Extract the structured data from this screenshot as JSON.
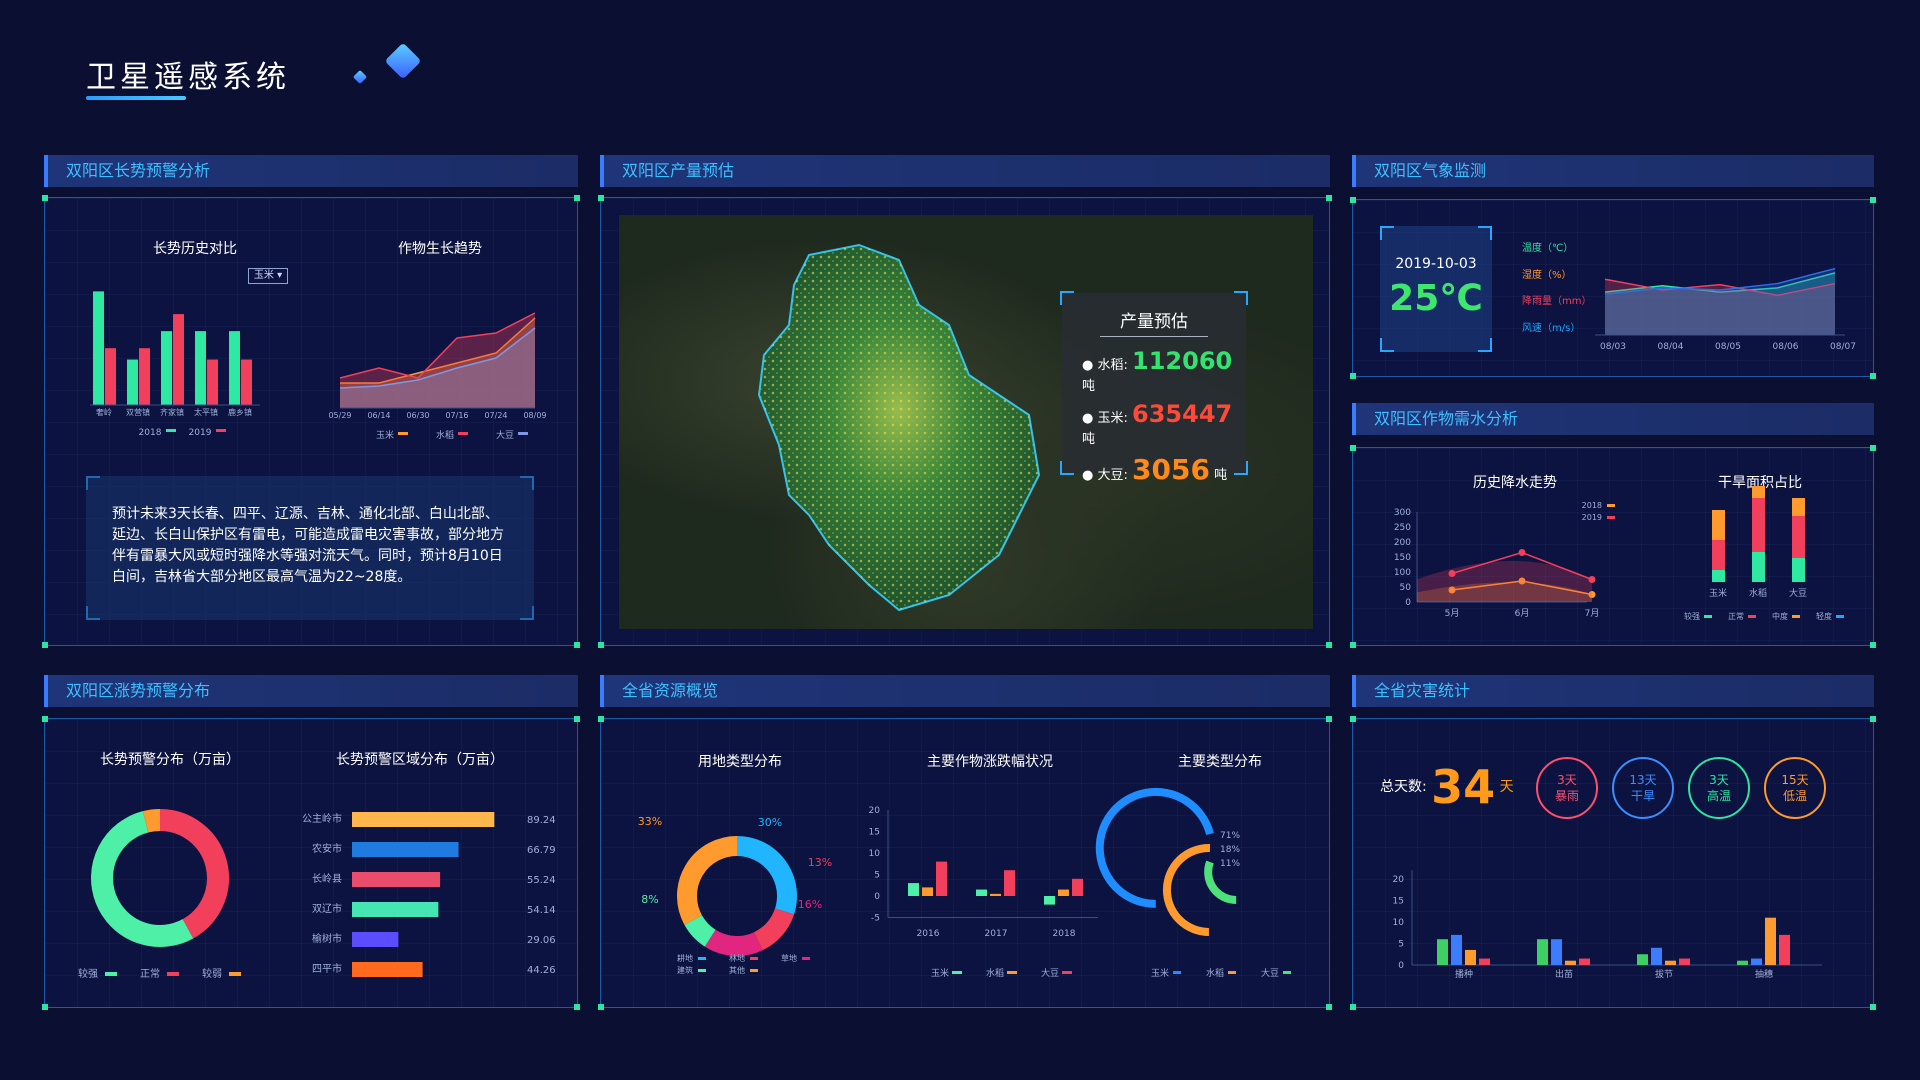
{
  "app": {
    "title": "卫星遥感系统"
  },
  "panels": {
    "growth_warning": {
      "header": "双阳区长势预警分析",
      "history_title": "长势历史对比",
      "trend_title": "作物生长趋势",
      "dropdown_value": "玉米",
      "forecast_text": "预计未来3天长春、四平、辽源、吉林、通化北部、白山北部、延边、长白山保护区有雷电，可能造成雷电灾害事故，部分地方伴有雷暴大风或短时强降水等强对流天气。同时，预计8月10日白间，吉林省大部分地区最高气温为22~28度。"
    },
    "yield": {
      "header": "双阳区产量预估",
      "box_title": "产量预估",
      "rice_label": "水稻:",
      "rice_value": "112060",
      "corn_label": "玉米:",
      "corn_value": "635447",
      "soy_label": "大豆:",
      "soy_value": "3056",
      "unit": "吨"
    },
    "weather": {
      "header": "双阳区气象监测",
      "date": "2019-10-03",
      "temperature": "25℃",
      "legend": [
        "温度（℃）",
        "湿度（%）",
        "降雨量（mm）",
        "风速（m/s）"
      ]
    },
    "water": {
      "header": "双阳区作物需水分析",
      "rain_title": "历史降水走势",
      "drought_title": "干旱面积占比"
    },
    "distribution": {
      "header": "双阳区涨势预警分布",
      "donut_title": "长势预警分布（万亩）",
      "bar_title": "长势预警区域分布（万亩）"
    },
    "resources": {
      "header": "全省资源概览",
      "land_title": "用地类型分布",
      "crop_title": "主要作物涨跌幅状况",
      "type_title": "主要类型分布"
    },
    "disaster": {
      "header": "全省灾害统计",
      "total_label": "总天数:",
      "total_value": "34",
      "total_unit": "天",
      "badges": [
        {
          "days": "3天",
          "name": "暴雨",
          "color": "#ff4f6d"
        },
        {
          "days": "13天",
          "name": "干旱",
          "color": "#3c8dff"
        },
        {
          "days": "3天",
          "name": "高温",
          "color": "#2fe3a0"
        },
        {
          "days": "15天",
          "name": "低温",
          "color": "#ff9a2e"
        }
      ]
    }
  },
  "colors": {
    "green": "#2fe8a2",
    "red": "#f23f5c",
    "orange": "#ff9a2e",
    "blue": "#1fa4ff",
    "yellow": "#ffd03a"
  },
  "chart_data": [
    {
      "id": "growth-history",
      "type": "bar",
      "categories": [
        "奢岭",
        "双营镇",
        "齐家镇",
        "太平镇",
        "鹿乡镇"
      ],
      "series": [
        {
          "name": "2018",
          "values": [
            100,
            40,
            65,
            65,
            65
          ]
        },
        {
          "name": "2019",
          "values": [
            50,
            50,
            80,
            40,
            40
          ]
        }
      ],
      "ylim": [
        0,
        110
      ]
    },
    {
      "id": "growth-trend",
      "type": "area",
      "categories": [
        "05/29",
        "06/14",
        "06/30",
        "07/16",
        "07/24",
        "08/09"
      ],
      "series": [
        {
          "name": "玉米",
          "values": [
            25,
            25,
            35,
            45,
            55,
            90
          ]
        },
        {
          "name": "水稻",
          "values": [
            30,
            40,
            30,
            70,
            75,
            95
          ]
        },
        {
          "name": "大豆",
          "values": [
            20,
            22,
            28,
            40,
            50,
            80
          ]
        }
      ],
      "ylim": [
        0,
        110
      ]
    },
    {
      "id": "weather",
      "type": "area",
      "categories": [
        "08/03",
        "08/04",
        "08/05",
        "08/06",
        "08/07"
      ],
      "series": [
        {
          "name": "温度（℃）",
          "values": [
            40,
            46,
            40,
            44,
            58
          ]
        },
        {
          "name": "降雨量（mm）",
          "values": [
            52,
            42,
            47,
            37,
            48
          ]
        },
        {
          "name": "风速（m/s）",
          "values": [
            38,
            44,
            42,
            48,
            62
          ]
        }
      ],
      "ylim": [
        0,
        70
      ]
    },
    {
      "id": "rain-trend",
      "type": "line",
      "categories": [
        "5月",
        "6月",
        "7月"
      ],
      "series": [
        {
          "name": "2018",
          "values": [
            40,
            70,
            25
          ]
        },
        {
          "name": "2019",
          "values": [
            95,
            165,
            75
          ]
        }
      ],
      "yticks": [
        0,
        50,
        100,
        150,
        200,
        250,
        300
      ],
      "ylim": [
        0,
        300
      ]
    },
    {
      "id": "drought",
      "type": "bar",
      "categories": [
        "玉米",
        "水稻",
        "大豆"
      ],
      "series": [
        {
          "name": "较强",
          "values": [
            10,
            25,
            20
          ]
        },
        {
          "name": "正常",
          "values": [
            25,
            45,
            35
          ]
        },
        {
          "name": "中度",
          "values": [
            25,
            10,
            15
          ]
        },
        {
          "name": "轻度",
          "values": [
            0,
            0,
            0
          ]
        }
      ]
    },
    {
      "id": "warning-donut",
      "type": "pie",
      "categories": [
        "较强",
        "正常",
        "较弱"
      ],
      "values": [
        42,
        54,
        4
      ]
    },
    {
      "id": "warning-region",
      "type": "bar",
      "categories": [
        "公主岭市",
        "农安市",
        "长岭县",
        "双辽市",
        "榆树市",
        "四平市"
      ],
      "values": [
        89.24,
        66.79,
        55.24,
        54.14,
        29.06,
        44.26
      ],
      "colors": [
        "#ffb74d",
        "#1f7be0",
        "#ea4d6c",
        "#46e6b4",
        "#5a4dff",
        "#ff6a1f"
      ]
    },
    {
      "id": "land-type",
      "type": "pie",
      "categories": [
        "耕地",
        "林地",
        "草地",
        "建筑",
        "其他"
      ],
      "values": [
        30,
        13,
        16,
        8,
        33
      ],
      "labels": [
        "30%",
        "13%",
        "16%",
        "8%",
        "33%"
      ]
    },
    {
      "id": "crop-change",
      "type": "bar",
      "categories": [
        "2016",
        "2017",
        "2018"
      ],
      "series": [
        {
          "name": "玉米",
          "values": [
            3,
            1.5,
            -2
          ]
        },
        {
          "name": "水稻",
          "values": [
            2,
            0.5,
            1.5
          ]
        },
        {
          "name": "大豆",
          "values": [
            8,
            6,
            4
          ]
        }
      ],
      "yticks": [
        20,
        15,
        10,
        5,
        0,
        -5
      ],
      "ylim": [
        -5,
        20
      ]
    },
    {
      "id": "main-type",
      "type": "pie",
      "categories": [
        "玉米",
        "水稻",
        "大豆"
      ],
      "values": [
        71,
        18,
        11
      ],
      "labels": [
        "71%",
        "18%",
        "11%"
      ]
    },
    {
      "id": "disaster-bars",
      "type": "bar",
      "categories": [
        "播种",
        "出苗",
        "拔节",
        "抽穗"
      ],
      "series": [
        {
          "name": "s1",
          "values": [
            6,
            6,
            2.5,
            1
          ]
        },
        {
          "name": "s2",
          "values": [
            7,
            6,
            4,
            1.5
          ]
        },
        {
          "name": "s3",
          "values": [
            3.5,
            1,
            1,
            11
          ]
        },
        {
          "name": "s4",
          "values": [
            1.5,
            1.5,
            1.5,
            7
          ]
        }
      ],
      "yticks": [
        20,
        15,
        10,
        5,
        0
      ],
      "ylim": [
        0,
        20
      ]
    }
  ]
}
